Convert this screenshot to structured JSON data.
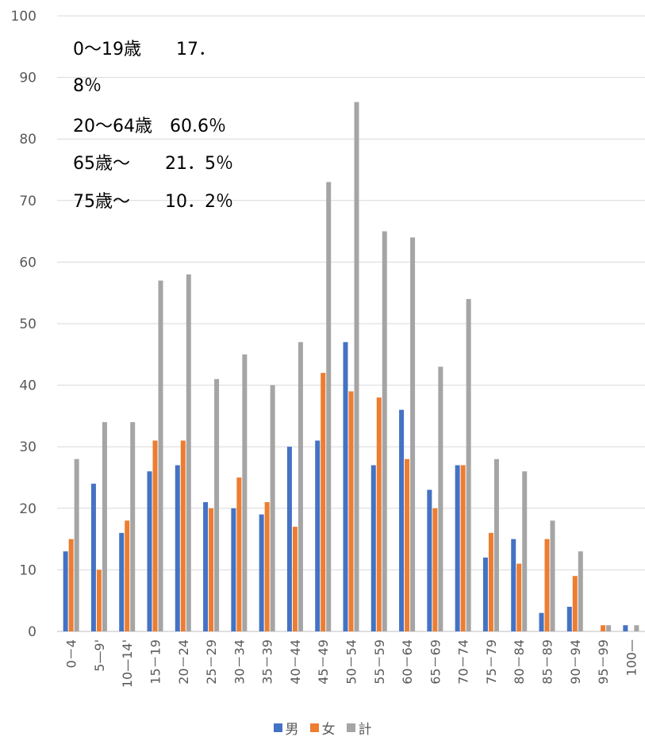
{
  "chart_data": {
    "type": "bar",
    "categories": [
      "0－4",
      "5—9'",
      "10—14'",
      "15－19",
      "20－24",
      "25－29",
      "30－34",
      "35－39",
      "40－44",
      "45－49",
      "50－54",
      "55－59",
      "60－64",
      "65－69",
      "70－74",
      "75－79",
      "80－84",
      "85－89",
      "90－94",
      "95－99",
      "100—"
    ],
    "series": [
      {
        "name": "男",
        "color": "#4472c4",
        "values": [
          13,
          24,
          16,
          26,
          27,
          21,
          20,
          19,
          30,
          31,
          47,
          27,
          36,
          23,
          27,
          12,
          15,
          3,
          4,
          0,
          1
        ]
      },
      {
        "name": "女",
        "color": "#ed7d31",
        "values": [
          15,
          10,
          18,
          31,
          31,
          20,
          25,
          21,
          17,
          42,
          39,
          38,
          28,
          20,
          27,
          16,
          11,
          15,
          9,
          1,
          0
        ]
      },
      {
        "name": "計",
        "color": "#a5a5a5",
        "values": [
          28,
          34,
          34,
          57,
          58,
          41,
          45,
          40,
          47,
          73,
          86,
          65,
          64,
          43,
          54,
          28,
          26,
          18,
          13,
          1,
          1
        ]
      }
    ],
    "yticks": [
      "0",
      "10",
      "20",
      "30",
      "40",
      "50",
      "60",
      "70",
      "80",
      "90",
      "100"
    ],
    "ylim": [
      0,
      100
    ],
    "grid": true,
    "legend": "bottom",
    "annotations": [
      "0～19歳　　17．",
      "8％",
      "20～64歳　60.6％",
      "65歳～　　21．5％",
      "75歳～　　10．2％"
    ]
  }
}
